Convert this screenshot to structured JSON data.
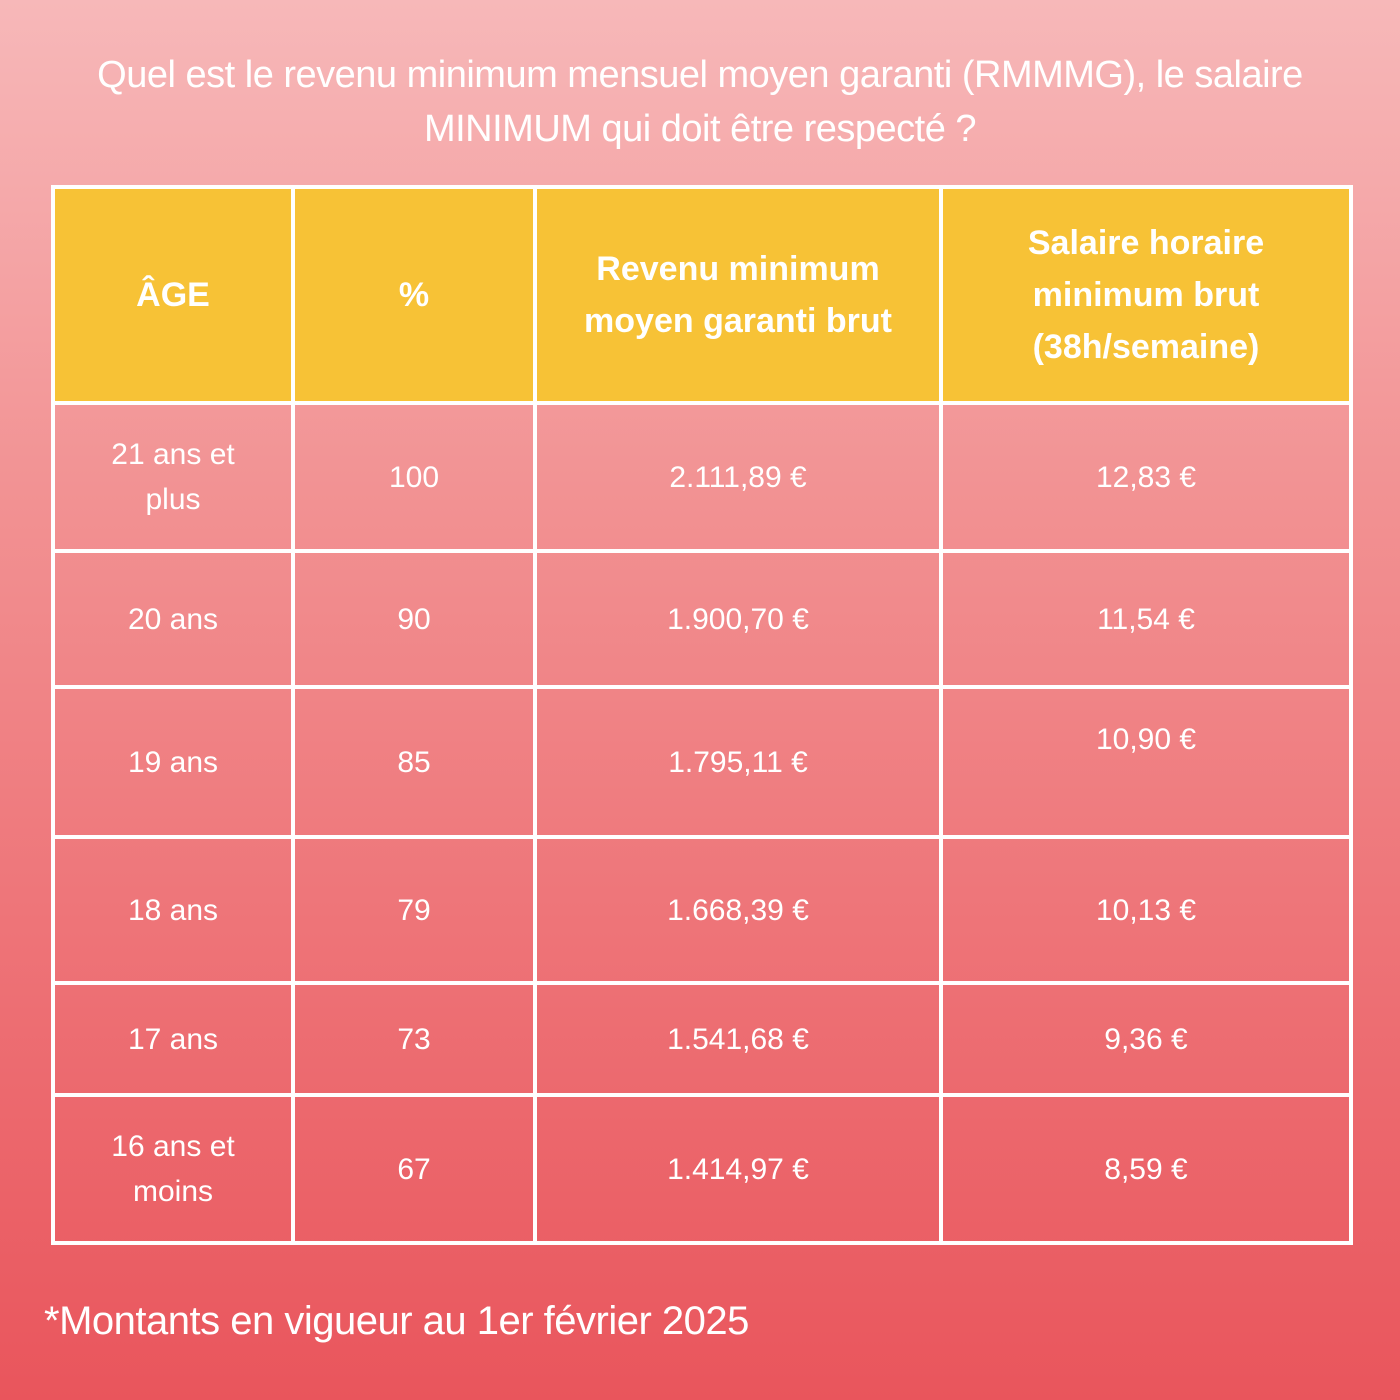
{
  "title": "Quel est le revenu minimum mensuel moyen garanti (RMMMG), le salaire MINIMUM qui doit être respecté ?",
  "table": {
    "headers": [
      "ÂGE",
      "%",
      "Revenu minimum moyen garanti brut",
      "Salaire horaire minimum brut (38h/semaine)"
    ],
    "rows": [
      [
        "21 ans et plus",
        "100",
        "2.111,89 €",
        "12,83 €"
      ],
      [
        "20 ans",
        "90",
        "1.900,70 €",
        "11,54 €"
      ],
      [
        "19 ans",
        "85",
        "1.795,11 €",
        "10,90 €"
      ],
      [
        "18 ans",
        "79",
        "1.668,39 €",
        "10,13 €"
      ],
      [
        "17 ans",
        "73",
        "1.541,68 €",
        "9,36 €"
      ],
      [
        "16 ans et moins",
        "67",
        "1.414,97 €",
        "8,59 €"
      ]
    ]
  },
  "footnote": "*Montants en vigueur au 1er février 2025",
  "colors": {
    "header_background": "#f7c236",
    "gradient_top": "#f7b8b9",
    "gradient_bottom": "#e9555c",
    "text": "#ffffff",
    "border": "#ffffff"
  }
}
